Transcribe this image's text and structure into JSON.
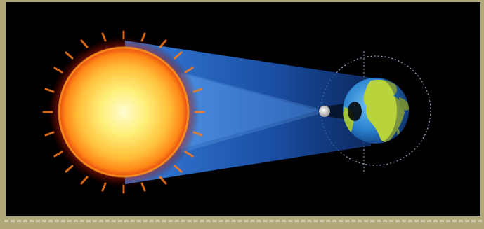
{
  "diagram": {
    "bodies": [
      {
        "name": "sun"
      },
      {
        "name": "moon"
      },
      {
        "name": "earth"
      }
    ],
    "colors": {
      "background": "#000000",
      "frame": "#b0a878",
      "sun_core": "#fff7a8",
      "sun_mid": "#ffb020",
      "sun_edge": "#e84a10",
      "light_cone": "#2a6fd6",
      "ocean": "#2f8fd8",
      "land": "#b9d33a",
      "moon": "#d9d9d9",
      "orbit": "#8fa6c8"
    }
  }
}
